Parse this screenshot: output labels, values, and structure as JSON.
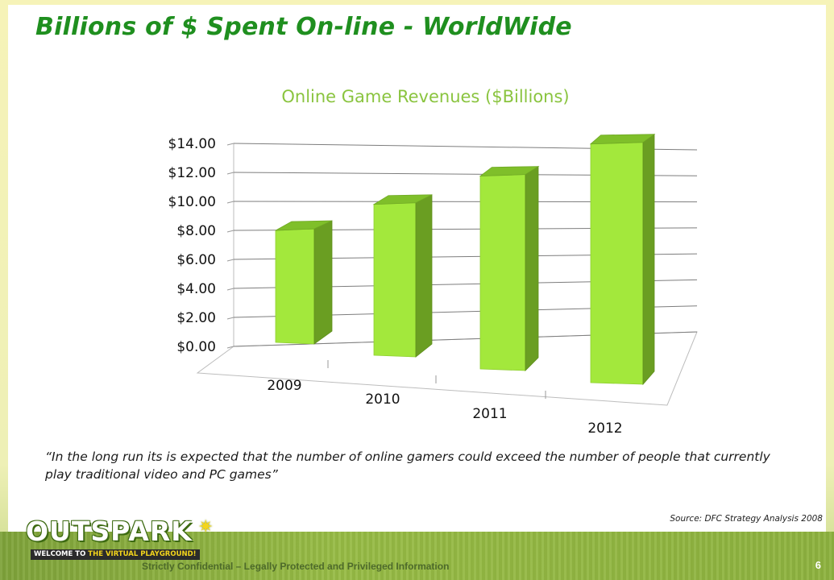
{
  "slide": {
    "title": "Billions of $ Spent On-line - WorldWide",
    "quote": "“In the long run its  is expected that the number of online gamers could exceed the number of people that currently play traditional video and PC games”",
    "source": "Source: DFC Strategy Analysis 2008"
  },
  "chart_data": {
    "type": "bar",
    "title": "Online Game Revenues ($Billions)",
    "categories": [
      "2009",
      "2010",
      "2011",
      "2012"
    ],
    "values": [
      7.8,
      10.0,
      12.2,
      14.5
    ],
    "ylim": [
      0,
      14
    ],
    "yticks": [
      "$0.00",
      "$2.00",
      "$4.00",
      "$6.00",
      "$8.00",
      "$10.00",
      "$12.00",
      "$14.00"
    ],
    "grid": true,
    "legend": "none",
    "colors": {
      "bar_front": "#a3e83c",
      "bar_side": "#6a9e22",
      "bar_top": "#7fbf2a"
    }
  },
  "footer": {
    "logo_text": "OUTSPARK",
    "tagline_prefix": "WELCOME TO ",
    "tagline_highlight": "THE VIRTUAL PLAYGROUND!",
    "confidential": "Strictly Confidential – Legally Protected and Privileged Information",
    "page_number": "6"
  }
}
